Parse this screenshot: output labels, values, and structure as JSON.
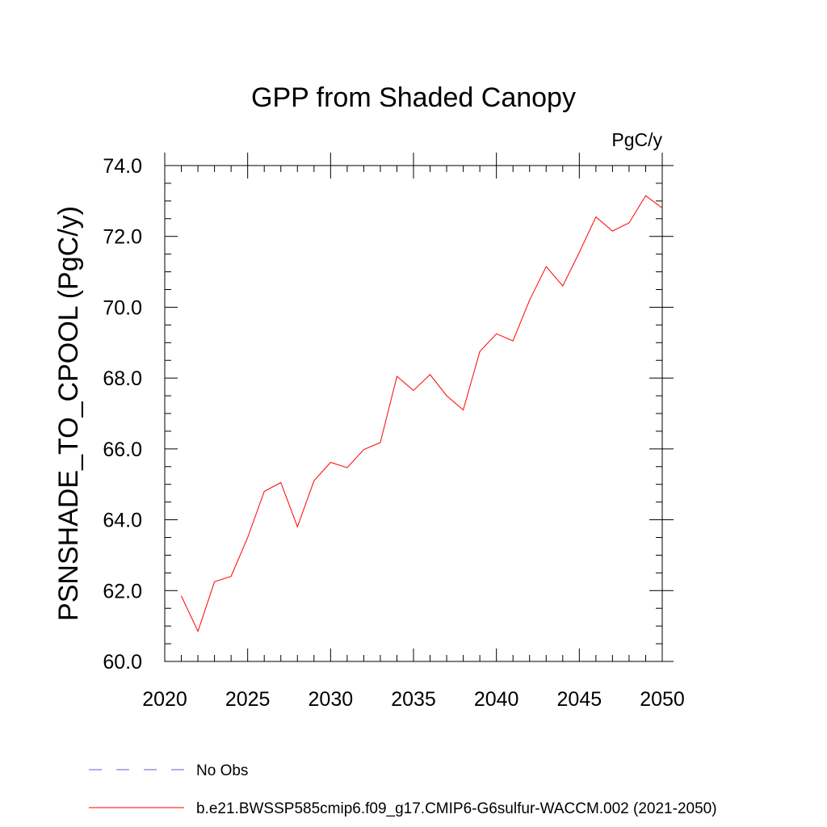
{
  "chart_data": {
    "type": "line",
    "title": "GPP from Shaded Canopy",
    "units": "PgC/y",
    "ylabel": "PSNSHADE_TO_CPOOL  (PgC/y)",
    "xlabel": "",
    "xlim": [
      2020,
      2050
    ],
    "ylim": [
      60,
      74
    ],
    "xticks": [
      2020,
      2025,
      2030,
      2035,
      2040,
      2045,
      2050
    ],
    "yticks": [
      "60.0",
      "62.0",
      "64.0",
      "66.0",
      "68.0",
      "70.0",
      "72.0",
      "74.0"
    ],
    "grid": false,
    "legend_position": "bottom",
    "series": [
      {
        "name": "b.e21.BWSSP585cmip6.f09_g17.CMIP6-G6sulfur-WACCM.002 (2021-2050)",
        "color": "#ff0000",
        "style": "solid",
        "x": [
          2021,
          2022,
          2023,
          2024,
          2025,
          2026,
          2027,
          2028,
          2029,
          2030,
          2031,
          2032,
          2033,
          2034,
          2035,
          2036,
          2037,
          2038,
          2039,
          2040,
          2041,
          2042,
          2043,
          2044,
          2045,
          2046,
          2047,
          2048,
          2049,
          2050
        ],
        "y": [
          61.85,
          60.85,
          62.25,
          62.4,
          63.5,
          64.8,
          65.05,
          63.8,
          65.1,
          65.62,
          65.47,
          65.98,
          66.18,
          68.05,
          67.65,
          68.1,
          67.5,
          67.1,
          68.75,
          69.25,
          69.05,
          70.2,
          71.15,
          70.6,
          71.55,
          72.55,
          72.15,
          72.38,
          73.15,
          72.8
        ]
      }
    ],
    "legend": [
      {
        "label": "No Obs",
        "color": "#6a5acd",
        "style": "dashed"
      },
      {
        "label": "b.e21.BWSSP585cmip6.f09_g17.CMIP6-G6sulfur-WACCM.002 (2021-2050)",
        "color": "#ff0000",
        "style": "solid"
      }
    ]
  }
}
